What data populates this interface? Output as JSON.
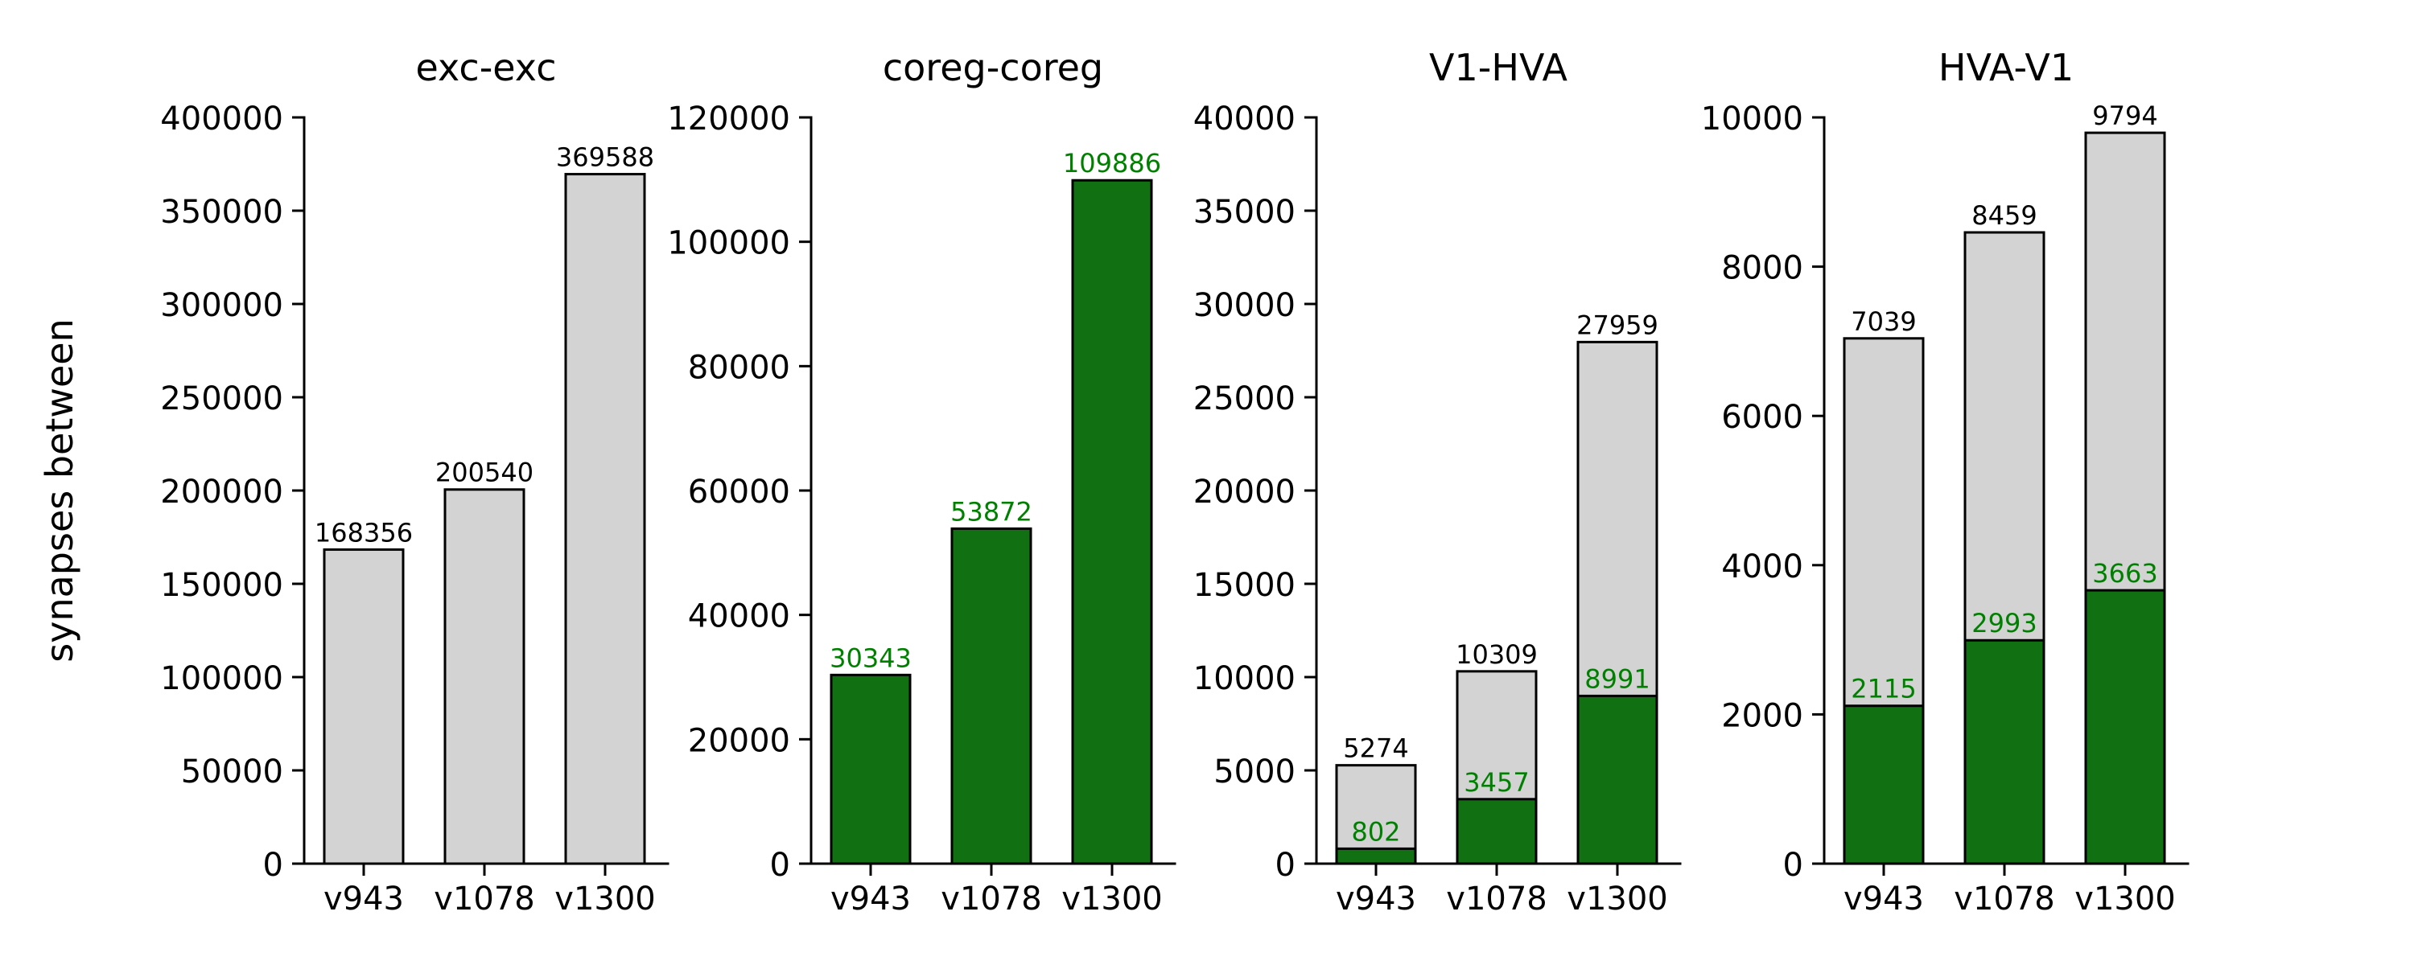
{
  "figure": {
    "ylabel": "synapses between"
  },
  "colors": {
    "total_fill": "#d3d3d3",
    "subset_fill": "#117011",
    "subset_label": "#008000",
    "total_label": "#000000",
    "edge": "#000000"
  },
  "chart_data": [
    {
      "type": "bar",
      "title": "exc-exc",
      "categories": [
        "v943",
        "v1078",
        "v1300"
      ],
      "ylim": [
        0,
        400000
      ],
      "yticks": [
        "0",
        "50000",
        "100000",
        "150000",
        "200000",
        "250000",
        "300000",
        "350000",
        "400000"
      ],
      "total": [
        168356,
        200540,
        369588
      ],
      "subset": null
    },
    {
      "type": "bar",
      "title": "coreg-coreg",
      "categories": [
        "v943",
        "v1078",
        "v1300"
      ],
      "ylim": [
        0,
        120000
      ],
      "yticks": [
        "0",
        "20000",
        "40000",
        "60000",
        "80000",
        "100000",
        "120000"
      ],
      "total": null,
      "subset": [
        30343,
        53872,
        109886
      ]
    },
    {
      "type": "bar",
      "title": "V1-HVA",
      "categories": [
        "v943",
        "v1078",
        "v1300"
      ],
      "ylim": [
        0,
        40000
      ],
      "yticks": [
        "0",
        "5000",
        "10000",
        "15000",
        "20000",
        "25000",
        "30000",
        "35000",
        "40000"
      ],
      "total": [
        5274,
        10309,
        27959
      ],
      "subset": [
        802,
        3457,
        8991
      ]
    },
    {
      "type": "bar",
      "title": "HVA-V1",
      "categories": [
        "v943",
        "v1078",
        "v1300"
      ],
      "ylim": [
        0,
        10000
      ],
      "yticks": [
        "0",
        "2000",
        "4000",
        "6000",
        "8000",
        "10000"
      ],
      "total": [
        7039,
        8459,
        9794
      ],
      "subset": [
        2115,
        2993,
        3663
      ]
    }
  ]
}
